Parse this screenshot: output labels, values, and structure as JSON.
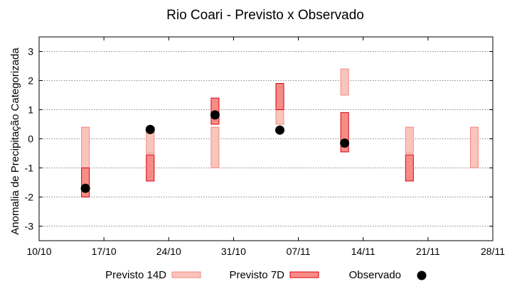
{
  "chart_data": {
    "type": "bar",
    "title": "Rio Coari - Previsto x Observado",
    "xlabel": "",
    "ylabel": "Anomalia de Precipitação Categorizada",
    "ylim": [
      -3.5,
      3.5
    ],
    "yticks": [
      3,
      2,
      1,
      0,
      -1,
      -2,
      -3
    ],
    "xlim": [
      "2011-10-10",
      "2011-11-28"
    ],
    "xticks": [
      {
        "date": "2011-10-10",
        "label": "10/10"
      },
      {
        "date": "2011-10-17",
        "label": "17/10"
      },
      {
        "date": "2011-10-24",
        "label": "24/10"
      },
      {
        "date": "2011-10-31",
        "label": "31/10"
      },
      {
        "date": "2011-11-07",
        "label": "07/11"
      },
      {
        "date": "2011-11-14",
        "label": "14/11"
      },
      {
        "date": "2011-11-21",
        "label": "21/11"
      },
      {
        "date": "2011-11-28",
        "label": "28/11"
      }
    ],
    "grid": true,
    "legend_position": "bottom",
    "colors": {
      "previsto_14d_fill": "#f9c4bc",
      "previsto_14d_stroke": "#f08a7e",
      "previsto_7d_fill": "#f78c86",
      "previsto_7d_stroke": "#d8000c",
      "observado": "#000000"
    },
    "series": [
      {
        "name": "Previsto 14D",
        "kind": "range",
        "points": [
          {
            "date": "2011-10-15",
            "low": -1.0,
            "high": 0.4
          },
          {
            "date": "2011-10-22",
            "low": -0.5,
            "high": 0.4
          },
          {
            "date": "2011-10-29",
            "low": -1.0,
            "high": 0.4
          },
          {
            "date": "2011-11-05",
            "low": 0.5,
            "high": 1.45
          },
          {
            "date": "2011-11-12",
            "low": 1.5,
            "high": 2.4
          },
          {
            "date": "2011-11-19",
            "low": -0.5,
            "high": 0.4
          },
          {
            "date": "2011-11-26",
            "low": -1.0,
            "high": 0.4
          }
        ]
      },
      {
        "name": "Previsto 7D",
        "kind": "range",
        "points": [
          {
            "date": "2011-10-15",
            "low": -2.0,
            "high": -1.0
          },
          {
            "date": "2011-10-22",
            "low": -1.45,
            "high": -0.55
          },
          {
            "date": "2011-10-29",
            "low": 0.5,
            "high": 1.4
          },
          {
            "date": "2011-11-05",
            "low": 1.0,
            "high": 1.9
          },
          {
            "date": "2011-11-12",
            "low": -0.45,
            "high": 0.9
          },
          {
            "date": "2011-11-19",
            "low": -1.45,
            "high": -0.55
          }
        ]
      },
      {
        "name": "Observado",
        "kind": "scatter",
        "points": [
          {
            "date": "2011-10-15",
            "value": -1.7
          },
          {
            "date": "2011-10-22",
            "value": 0.32
          },
          {
            "date": "2011-10-29",
            "value": 0.82
          },
          {
            "date": "2011-11-05",
            "value": 0.3
          },
          {
            "date": "2011-11-12",
            "value": -0.15
          }
        ]
      }
    ]
  }
}
